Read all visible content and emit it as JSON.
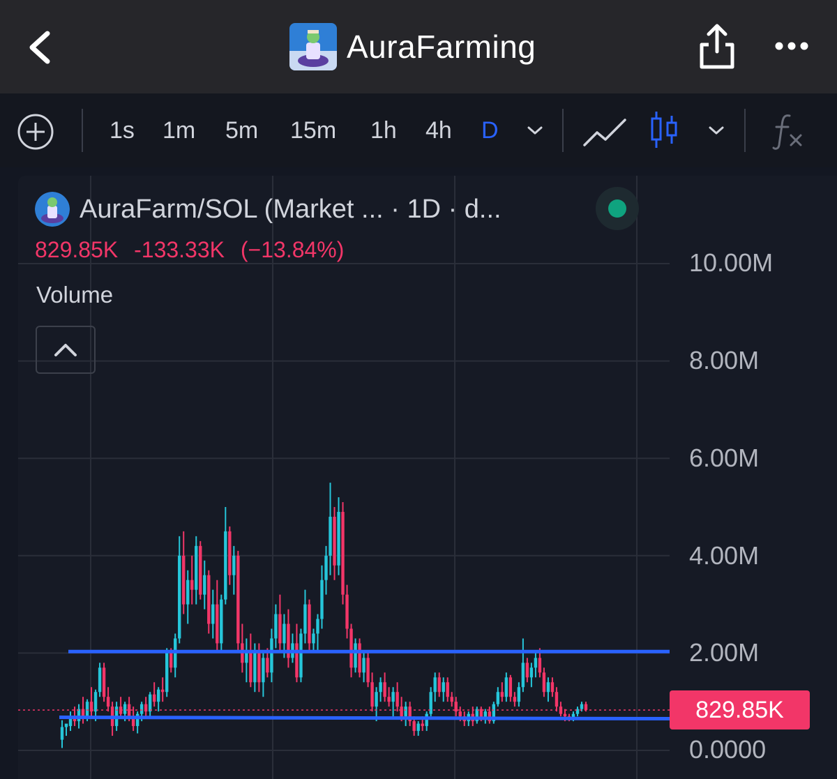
{
  "header": {
    "title": "AuraFarming",
    "back_icon": "chevron-left-icon",
    "share_icon": "share-icon",
    "more_icon": "more-icon"
  },
  "toolbar": {
    "add_icon": "plus-circle-icon",
    "timeframes": [
      "1s",
      "1m",
      "5m",
      "15m",
      "1h",
      "4h",
      "D"
    ],
    "active_timeframe": "D",
    "chart_type_line_icon": "line-chart-icon",
    "chart_type_candle_icon": "candlestick-icon",
    "indicators_icon": "fx-icon"
  },
  "chart_header": {
    "symbol_text": "AuraFarm/SOL (Market ... · 1D · d...",
    "last": "829.85K",
    "change": "-133.33K",
    "change_pct": "(−13.84%)",
    "volume_label": "Volume"
  },
  "colors": {
    "up": "#26c6da",
    "down": "#f23668",
    "accent": "#2962ff",
    "status": "#0fa37f"
  },
  "chart_data": {
    "type": "candlestick",
    "y_axis_labels": [
      "10.00M",
      "8.00M",
      "6.00M",
      "4.00M",
      "2.00M",
      "0.0000"
    ],
    "ylim": [
      0,
      10000000
    ],
    "current_price_label": "829.85K",
    "current_price": 829850,
    "horizontal_lines": [
      2030000,
      680000
    ],
    "candles": [
      [
        0.22,
        0.62,
        0.05,
        0.48
      ],
      [
        0.48,
        0.5,
        0.3,
        0.55
      ],
      [
        0.5,
        0.8,
        0.4,
        0.7
      ],
      [
        0.7,
        0.9,
        0.5,
        0.6
      ],
      [
        0.6,
        0.95,
        0.45,
        0.85
      ],
      [
        0.85,
        1.1,
        0.55,
        0.7
      ],
      [
        0.7,
        1.05,
        0.6,
        1.0
      ],
      [
        1.0,
        1.3,
        0.7,
        0.8
      ],
      [
        0.8,
        1.25,
        0.6,
        1.2
      ],
      [
        1.2,
        1.8,
        1.1,
        1.7
      ],
      [
        1.7,
        1.8,
        1.0,
        1.1
      ],
      [
        1.1,
        1.3,
        0.8,
        0.9
      ],
      [
        0.9,
        1.0,
        0.3,
        0.5
      ],
      [
        0.5,
        1.0,
        0.4,
        0.9
      ],
      [
        0.9,
        1.1,
        0.7,
        0.75
      ],
      [
        0.75,
        1.0,
        0.6,
        0.95
      ],
      [
        0.95,
        1.1,
        0.6,
        0.7
      ],
      [
        0.7,
        0.9,
        0.4,
        0.5
      ],
      [
        0.5,
        0.8,
        0.35,
        0.75
      ],
      [
        0.75,
        1.0,
        0.6,
        0.95
      ],
      [
        0.95,
        1.1,
        0.7,
        0.8
      ],
      [
        0.8,
        1.2,
        0.7,
        1.15
      ],
      [
        1.15,
        1.4,
        0.9,
        1.0
      ],
      [
        1.0,
        1.3,
        0.8,
        1.25
      ],
      [
        1.25,
        1.5,
        1.0,
        1.2
      ],
      [
        1.2,
        2.1,
        1.1,
        2.0
      ],
      [
        2.0,
        2.1,
        1.6,
        1.7
      ],
      [
        1.7,
        2.4,
        1.5,
        2.3
      ],
      [
        2.3,
        4.4,
        2.2,
        4.0
      ],
      [
        4.0,
        4.5,
        2.8,
        3.0
      ],
      [
        3.0,
        3.7,
        2.6,
        3.5
      ],
      [
        3.5,
        4.0,
        3.0,
        3.3
      ],
      [
        3.3,
        4.4,
        3.0,
        4.2
      ],
      [
        4.2,
        4.3,
        3.1,
        3.2
      ],
      [
        3.2,
        3.9,
        2.9,
        3.6
      ],
      [
        3.6,
        3.7,
        2.4,
        2.6
      ],
      [
        2.6,
        3.3,
        2.3,
        3.0
      ],
      [
        3.0,
        3.5,
        2.0,
        2.2
      ],
      [
        2.2,
        3.2,
        2.0,
        3.1
      ],
      [
        3.1,
        5.0,
        3.0,
        4.5
      ],
      [
        4.5,
        4.6,
        3.4,
        3.6
      ],
      [
        3.6,
        4.2,
        3.2,
        4.0
      ],
      [
        4.0,
        4.1,
        2.0,
        2.2
      ],
      [
        2.2,
        2.6,
        1.6,
        1.8
      ],
      [
        1.8,
        2.3,
        1.4,
        2.0
      ],
      [
        2.0,
        2.4,
        1.3,
        1.4
      ],
      [
        1.4,
        2.2,
        1.2,
        2.0
      ],
      [
        2.0,
        2.2,
        1.2,
        1.4
      ],
      [
        1.4,
        2.0,
        1.1,
        1.9
      ],
      [
        1.9,
        2.1,
        1.5,
        1.6
      ],
      [
        1.6,
        2.5,
        1.4,
        2.3
      ],
      [
        2.3,
        3.0,
        2.1,
        2.8
      ],
      [
        2.8,
        3.2,
        2.0,
        2.2
      ],
      [
        2.2,
        2.8,
        1.9,
        2.6
      ],
      [
        2.6,
        2.9,
        1.7,
        1.9
      ],
      [
        1.9,
        2.4,
        1.8,
        2.2
      ],
      [
        2.2,
        2.6,
        1.4,
        1.5
      ],
      [
        1.5,
        2.5,
        1.4,
        2.4
      ],
      [
        2.4,
        3.3,
        2.2,
        3.0
      ],
      [
        3.0,
        3.1,
        2.0,
        2.2
      ],
      [
        2.2,
        2.5,
        2.0,
        2.4
      ],
      [
        2.4,
        2.8,
        2.0,
        2.7
      ],
      [
        2.7,
        3.8,
        2.5,
        3.5
      ],
      [
        3.5,
        4.2,
        3.2,
        4.0
      ],
      [
        4.0,
        5.5,
        3.6,
        4.8
      ],
      [
        4.8,
        5.0,
        3.5,
        3.8
      ],
      [
        3.8,
        5.2,
        3.6,
        4.9
      ],
      [
        4.9,
        5.1,
        3.0,
        3.2
      ],
      [
        3.2,
        3.4,
        2.3,
        2.5
      ],
      [
        2.5,
        2.6,
        1.5,
        1.7
      ],
      [
        1.7,
        2.3,
        1.6,
        2.2
      ],
      [
        2.2,
        2.3,
        1.5,
        1.6
      ],
      [
        1.6,
        2.0,
        1.4,
        1.9
      ],
      [
        1.9,
        2.0,
        1.3,
        1.4
      ],
      [
        1.4,
        1.6,
        0.8,
        0.9
      ],
      [
        0.9,
        1.3,
        0.6,
        1.2
      ],
      [
        1.2,
        1.5,
        1.0,
        1.4
      ],
      [
        1.4,
        1.6,
        1.0,
        1.1
      ],
      [
        1.1,
        1.3,
        0.9,
        1.0
      ],
      [
        1.0,
        1.3,
        0.7,
        1.2
      ],
      [
        1.2,
        1.4,
        0.8,
        0.9
      ],
      [
        0.9,
        1.1,
        0.6,
        0.7
      ],
      [
        0.7,
        1.0,
        0.5,
        0.9
      ],
      [
        0.9,
        1.0,
        0.5,
        0.6
      ],
      [
        0.6,
        0.7,
        0.3,
        0.4
      ],
      [
        0.4,
        0.6,
        0.3,
        0.55
      ],
      [
        0.55,
        0.7,
        0.4,
        0.5
      ],
      [
        0.5,
        0.8,
        0.4,
        0.75
      ],
      [
        0.75,
        1.3,
        0.7,
        1.2
      ],
      [
        1.2,
        1.6,
        1.0,
        1.5
      ],
      [
        1.5,
        1.6,
        1.1,
        1.2
      ],
      [
        1.2,
        1.5,
        1.0,
        1.4
      ],
      [
        1.4,
        1.5,
        1.0,
        1.1
      ],
      [
        1.1,
        1.2,
        0.9,
        1.0
      ],
      [
        1.0,
        1.1,
        0.7,
        0.8
      ],
      [
        0.8,
        0.9,
        0.6,
        0.7
      ],
      [
        0.7,
        0.8,
        0.5,
        0.6
      ],
      [
        0.6,
        0.8,
        0.5,
        0.75
      ],
      [
        0.75,
        0.9,
        0.5,
        0.6
      ],
      [
        0.6,
        0.9,
        0.55,
        0.85
      ],
      [
        0.85,
        0.9,
        0.6,
        0.65
      ],
      [
        0.65,
        0.85,
        0.55,
        0.8
      ],
      [
        0.8,
        0.9,
        0.55,
        0.6
      ],
      [
        0.6,
        1.0,
        0.55,
        0.95
      ],
      [
        0.95,
        1.3,
        0.9,
        1.2
      ],
      [
        1.2,
        1.4,
        1.0,
        1.1
      ],
      [
        1.1,
        1.6,
        1.0,
        1.5
      ],
      [
        1.5,
        1.55,
        1.0,
        1.1
      ],
      [
        1.1,
        1.2,
        0.9,
        1.0
      ],
      [
        1.0,
        1.4,
        0.9,
        1.3
      ],
      [
        1.3,
        2.3,
        1.2,
        1.8
      ],
      [
        1.8,
        1.9,
        1.4,
        1.5
      ],
      [
        1.5,
        1.8,
        1.3,
        1.7
      ],
      [
        1.7,
        2.0,
        1.5,
        1.9
      ],
      [
        1.9,
        2.1,
        1.5,
        1.6
      ],
      [
        1.6,
        1.7,
        1.1,
        1.2
      ],
      [
        1.2,
        1.5,
        1.0,
        1.4
      ],
      [
        1.4,
        1.5,
        1.1,
        1.2
      ],
      [
        1.2,
        1.3,
        0.8,
        0.9
      ],
      [
        0.9,
        1.0,
        0.7,
        0.75
      ],
      [
        0.75,
        0.85,
        0.6,
        0.7
      ],
      [
        0.7,
        0.75,
        0.6,
        0.65
      ],
      [
        0.65,
        0.8,
        0.6,
        0.75
      ],
      [
        0.75,
        0.9,
        0.7,
        0.85
      ],
      [
        0.85,
        1.0,
        0.8,
        0.95
      ],
      [
        0.95,
        1.0,
        0.8,
        0.83
      ]
    ]
  }
}
